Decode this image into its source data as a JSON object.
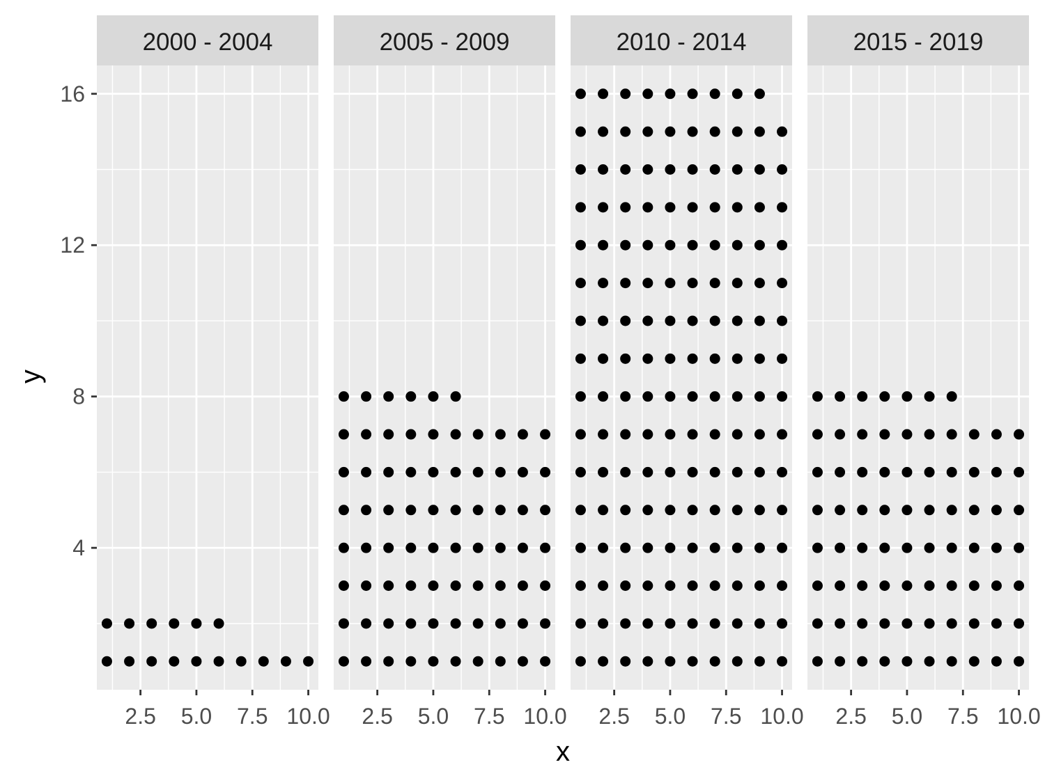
{
  "chart_data": {
    "type": "scatter",
    "title": "",
    "xlabel": "x",
    "ylabel": "y",
    "xlim": [
      0.55,
      10.45
    ],
    "ylim": [
      0.25,
      16.75
    ],
    "x_ticks": [
      2.5,
      5.0,
      7.5,
      10.0
    ],
    "x_tick_labels": [
      "2.5",
      "5.0",
      "7.5",
      "10.0"
    ],
    "y_ticks": [
      4,
      8,
      12,
      16
    ],
    "y_tick_labels": [
      "4",
      "8",
      "12",
      "16"
    ],
    "grid": true,
    "colors": {
      "panel_bg": "#ebebeb",
      "strip_bg": "#d9d9d9",
      "grid": "#ffffff",
      "point": "#000000",
      "tick": "#333333"
    },
    "panels": [
      {
        "label": "2000 - 2004",
        "full_rows": 1,
        "partial_row_count": 6,
        "points_x": [
          1,
          2,
          3,
          4,
          5,
          6,
          7,
          8,
          9,
          10,
          1,
          2,
          3,
          4,
          5,
          6
        ],
        "points_y": [
          1,
          1,
          1,
          1,
          1,
          1,
          1,
          1,
          1,
          1,
          2,
          2,
          2,
          2,
          2,
          2
        ]
      },
      {
        "label": "2005 - 2009",
        "full_rows": 7,
        "partial_row_count": 6,
        "points_x": [
          1,
          2,
          3,
          4,
          5,
          6,
          7,
          8,
          9,
          10,
          1,
          2,
          3,
          4,
          5,
          6,
          7,
          8,
          9,
          10,
          1,
          2,
          3,
          4,
          5,
          6,
          7,
          8,
          9,
          10,
          1,
          2,
          3,
          4,
          5,
          6,
          7,
          8,
          9,
          10,
          1,
          2,
          3,
          4,
          5,
          6,
          7,
          8,
          9,
          10,
          1,
          2,
          3,
          4,
          5,
          6,
          7,
          8,
          9,
          10,
          1,
          2,
          3,
          4,
          5,
          6,
          7,
          8,
          9,
          10,
          1,
          2,
          3,
          4,
          5,
          6
        ],
        "points_y": [
          1,
          1,
          1,
          1,
          1,
          1,
          1,
          1,
          1,
          1,
          2,
          2,
          2,
          2,
          2,
          2,
          2,
          2,
          2,
          2,
          3,
          3,
          3,
          3,
          3,
          3,
          3,
          3,
          3,
          3,
          4,
          4,
          4,
          4,
          4,
          4,
          4,
          4,
          4,
          4,
          5,
          5,
          5,
          5,
          5,
          5,
          5,
          5,
          5,
          5,
          6,
          6,
          6,
          6,
          6,
          6,
          6,
          6,
          6,
          6,
          7,
          7,
          7,
          7,
          7,
          7,
          7,
          7,
          7,
          7,
          8,
          8,
          8,
          8,
          8,
          8
        ]
      },
      {
        "label": "2010 - 2014",
        "full_rows": 15,
        "partial_row_count": 9,
        "points_x": [
          1,
          2,
          3,
          4,
          5,
          6,
          7,
          8,
          9,
          10,
          1,
          2,
          3,
          4,
          5,
          6,
          7,
          8,
          9,
          10,
          1,
          2,
          3,
          4,
          5,
          6,
          7,
          8,
          9,
          10,
          1,
          2,
          3,
          4,
          5,
          6,
          7,
          8,
          9,
          10,
          1,
          2,
          3,
          4,
          5,
          6,
          7,
          8,
          9,
          10,
          1,
          2,
          3,
          4,
          5,
          6,
          7,
          8,
          9,
          10,
          1,
          2,
          3,
          4,
          5,
          6,
          7,
          8,
          9,
          10,
          1,
          2,
          3,
          4,
          5,
          6,
          7,
          8,
          9,
          10,
          1,
          2,
          3,
          4,
          5,
          6,
          7,
          8,
          9,
          10,
          1,
          2,
          3,
          4,
          5,
          6,
          7,
          8,
          9,
          10,
          1,
          2,
          3,
          4,
          5,
          6,
          7,
          8,
          9,
          10,
          1,
          2,
          3,
          4,
          5,
          6,
          7,
          8,
          9,
          10,
          1,
          2,
          3,
          4,
          5,
          6,
          7,
          8,
          9,
          10,
          1,
          2,
          3,
          4,
          5,
          6,
          7,
          8,
          9,
          10,
          1,
          2,
          3,
          4,
          5,
          6,
          7,
          8,
          9,
          10,
          1,
          2,
          3,
          4,
          5,
          6,
          7,
          8,
          9
        ],
        "points_y": [
          1,
          1,
          1,
          1,
          1,
          1,
          1,
          1,
          1,
          1,
          2,
          2,
          2,
          2,
          2,
          2,
          2,
          2,
          2,
          2,
          3,
          3,
          3,
          3,
          3,
          3,
          3,
          3,
          3,
          3,
          4,
          4,
          4,
          4,
          4,
          4,
          4,
          4,
          4,
          4,
          5,
          5,
          5,
          5,
          5,
          5,
          5,
          5,
          5,
          5,
          6,
          6,
          6,
          6,
          6,
          6,
          6,
          6,
          6,
          6,
          7,
          7,
          7,
          7,
          7,
          7,
          7,
          7,
          7,
          7,
          8,
          8,
          8,
          8,
          8,
          8,
          8,
          8,
          8,
          8,
          9,
          9,
          9,
          9,
          9,
          9,
          9,
          9,
          9,
          9,
          10,
          10,
          10,
          10,
          10,
          10,
          10,
          10,
          10,
          10,
          11,
          11,
          11,
          11,
          11,
          11,
          11,
          11,
          11,
          11,
          12,
          12,
          12,
          12,
          12,
          12,
          12,
          12,
          12,
          12,
          13,
          13,
          13,
          13,
          13,
          13,
          13,
          13,
          13,
          13,
          14,
          14,
          14,
          14,
          14,
          14,
          14,
          14,
          14,
          14,
          15,
          15,
          15,
          15,
          15,
          15,
          15,
          15,
          15,
          15,
          16,
          16,
          16,
          16,
          16,
          16,
          16,
          16,
          16
        ]
      },
      {
        "label": "2015 - 2019",
        "full_rows": 7,
        "partial_row_count": 7,
        "points_x": [
          1,
          2,
          3,
          4,
          5,
          6,
          7,
          8,
          9,
          10,
          1,
          2,
          3,
          4,
          5,
          6,
          7,
          8,
          9,
          10,
          1,
          2,
          3,
          4,
          5,
          6,
          7,
          8,
          9,
          10,
          1,
          2,
          3,
          4,
          5,
          6,
          7,
          8,
          9,
          10,
          1,
          2,
          3,
          4,
          5,
          6,
          7,
          8,
          9,
          10,
          1,
          2,
          3,
          4,
          5,
          6,
          7,
          8,
          9,
          10,
          1,
          2,
          3,
          4,
          5,
          6,
          7,
          8,
          9,
          10,
          1,
          2,
          3,
          4,
          5,
          6,
          7
        ],
        "points_y": [
          1,
          1,
          1,
          1,
          1,
          1,
          1,
          1,
          1,
          1,
          2,
          2,
          2,
          2,
          2,
          2,
          2,
          2,
          2,
          2,
          3,
          3,
          3,
          3,
          3,
          3,
          3,
          3,
          3,
          3,
          4,
          4,
          4,
          4,
          4,
          4,
          4,
          4,
          4,
          4,
          5,
          5,
          5,
          5,
          5,
          5,
          5,
          5,
          5,
          5,
          6,
          6,
          6,
          6,
          6,
          6,
          6,
          6,
          6,
          6,
          7,
          7,
          7,
          7,
          7,
          7,
          7,
          7,
          7,
          7,
          8,
          8,
          8,
          8,
          8,
          8,
          8
        ]
      }
    ]
  }
}
